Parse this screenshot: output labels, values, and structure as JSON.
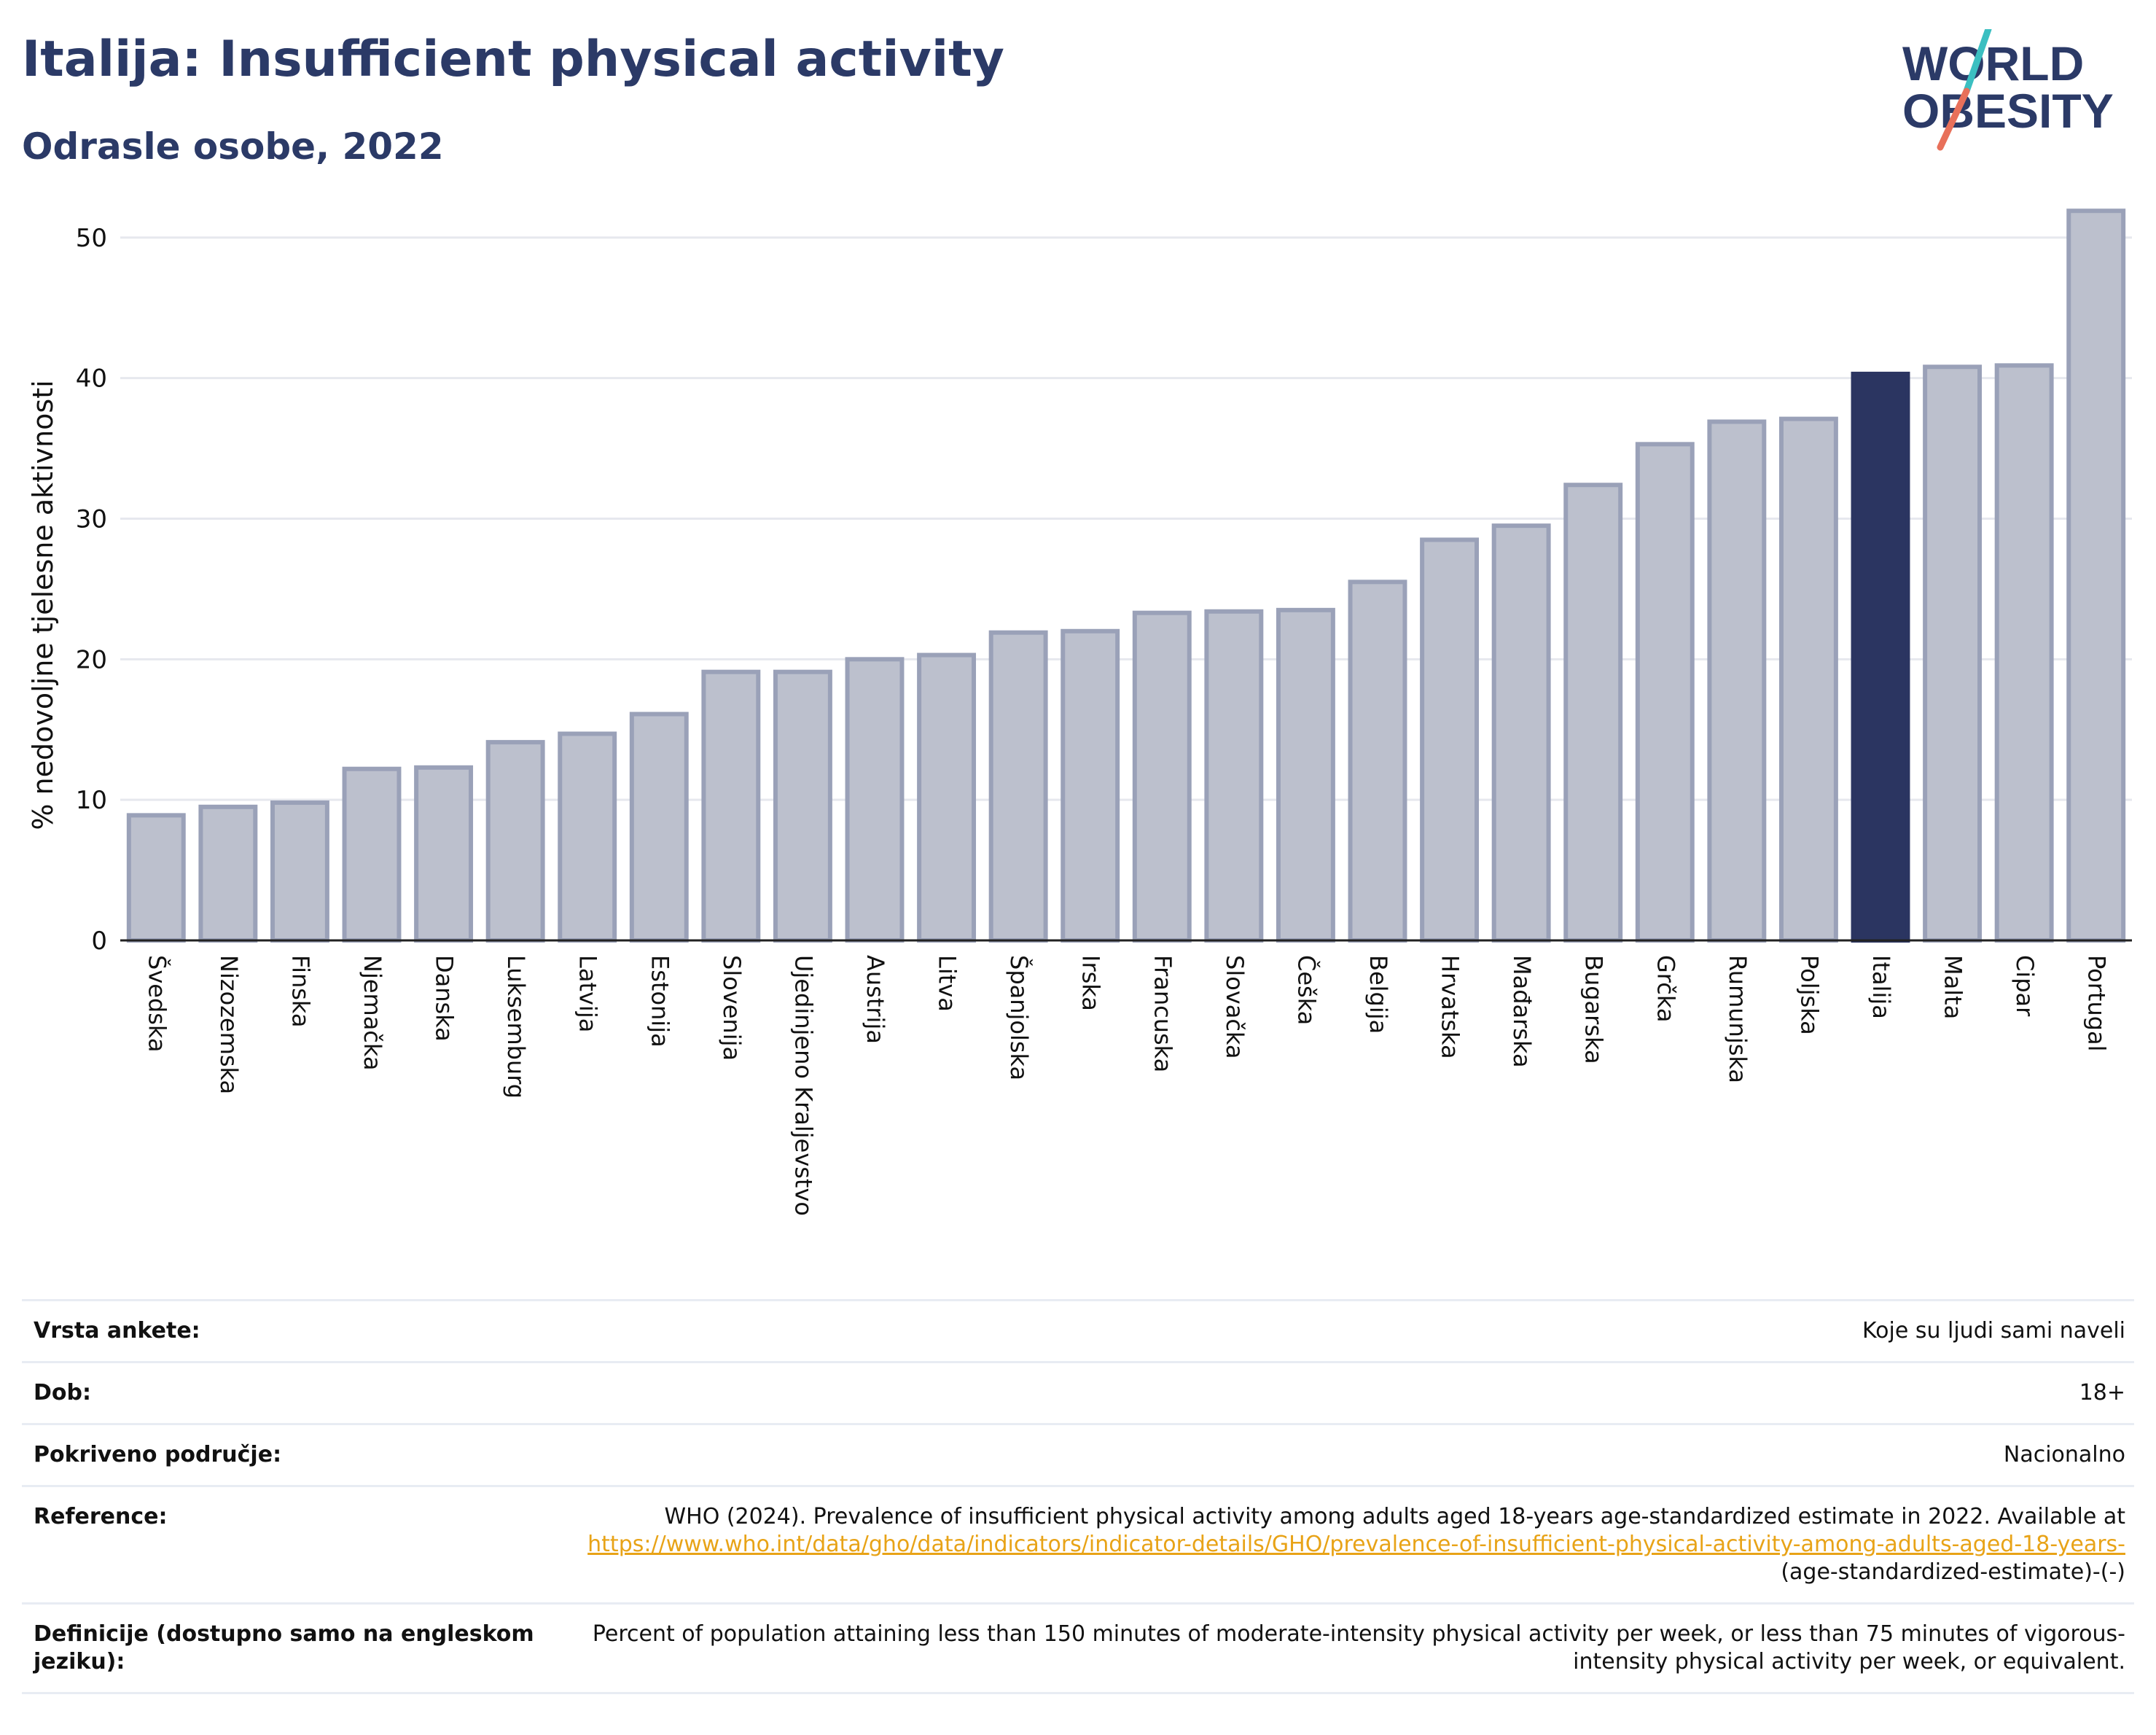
{
  "header": {
    "title": "Italija: Insufficient physical activity",
    "subtitle": "Odrasle osobe, 2022"
  },
  "logo": {
    "line1": "WORLD",
    "line2": "OBESITY",
    "icon": "world-obesity-logo-icon",
    "colors": {
      "text": "#2b3a67",
      "slash_top": "#3bbfc1",
      "slash_bottom": "#e8705a"
    }
  },
  "chart_data": {
    "type": "bar",
    "title": "Italija: Insufficient physical activity",
    "subtitle": "Odrasle osobe, 2022",
    "ylabel": "% nedovoljne tjelesne aktivnosti",
    "xlabel": "",
    "ylim": [
      0,
      53
    ],
    "yticks": [
      0,
      10,
      20,
      30,
      40,
      50
    ],
    "grid": true,
    "highlight": "Italija",
    "colors": {
      "bar": "#bcc0cd",
      "bar_border": "#9aa1b8",
      "highlight": "#2b3561"
    },
    "categories": [
      "Švedska",
      "Nizozemska",
      "Finska",
      "Njemačka",
      "Danska",
      "Luksemburg",
      "Latvija",
      "Estonija",
      "Slovenija",
      "Ujedinjeno Kraljevstvo",
      "Austrija",
      "Litva",
      "Španjolska",
      "Irska",
      "Francuska",
      "Slovačka",
      "Češka",
      "Belgija",
      "Hrvatska",
      "Mađarska",
      "Bugarska",
      "Grčka",
      "Rumunjska",
      "Poljska",
      "Italija",
      "Malta",
      "Cipar",
      "Portugal"
    ],
    "values": [
      8.9,
      9.5,
      9.8,
      12.2,
      12.3,
      14.1,
      14.7,
      16.1,
      19.1,
      19.1,
      20.0,
      20.3,
      21.9,
      22.0,
      23.3,
      23.4,
      23.5,
      25.5,
      28.5,
      29.5,
      32.4,
      35.3,
      36.9,
      37.1,
      40.3,
      40.8,
      40.9,
      51.9
    ]
  },
  "meta": {
    "rows": [
      {
        "label": "Vrsta ankete:",
        "value": "Koje su ljudi sami naveli"
      },
      {
        "label": "Dob:",
        "value": "18+"
      },
      {
        "label": "Pokriveno područje:",
        "value": "Nacionalno"
      }
    ],
    "reference": {
      "label": "Reference:",
      "text": "WHO (2024). Prevalence of insufficient physical activity among adults aged 18-years age-standardized estimate in 2022. Available at",
      "link": "https://www.who.int/data/gho/data/indicators/indicator-details/GHO/prevalence-of-insufficient-physical-activity-among-adults-aged-18-years-",
      "suffix": "(age-standardized-estimate)-(-)"
    },
    "definition": {
      "label": "Definicije (dostupno samo na engleskom jeziku):",
      "text": "Percent of population attaining less than 150 minutes of moderate-intensity physical activity per week, or less than 75 minutes of vigorous-intensity physical activity per week, or equivalent."
    }
  }
}
